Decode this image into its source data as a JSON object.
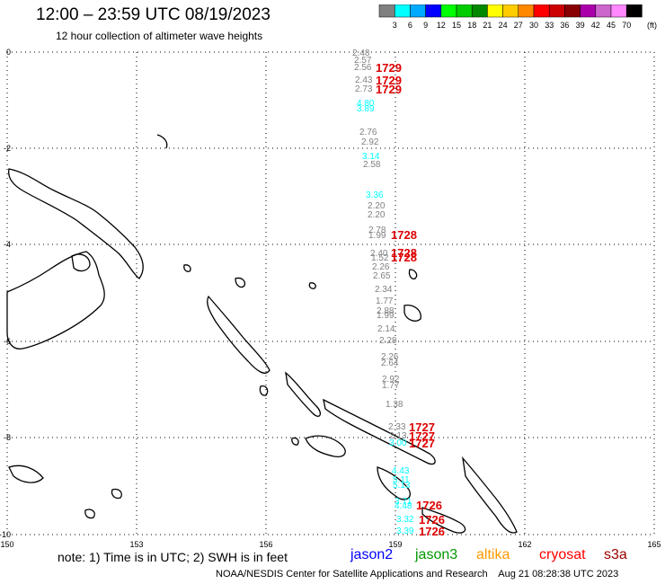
{
  "title": "12:00 – 23:59 UTC 08/19/2023",
  "subtitle": "12 hour collection of altimeter wave heights",
  "legend": {
    "unit": "(ft)",
    "colors": [
      "#808080",
      "#00ffff",
      "#00aaff",
      "#0000ff",
      "#00ff00",
      "#00cc00",
      "#008800",
      "#ffff00",
      "#ffcc00",
      "#ff8800",
      "#ff0000",
      "#cc0000",
      "#880000",
      "#aa00aa",
      "#cc66cc",
      "#ff88ff",
      "#000000"
    ],
    "labels": [
      "3",
      "6",
      "9",
      "12",
      "15",
      "18",
      "21",
      "24",
      "27",
      "30",
      "33",
      "36",
      "39",
      "42",
      "45",
      "70"
    ]
  },
  "axes": {
    "x_ticks": [
      "150",
      "153",
      "156",
      "159",
      "162",
      "165"
    ],
    "y_ticks": [
      "0",
      "-2",
      "-4",
      "-6",
      "-8",
      "-10"
    ]
  },
  "wave_labels": [
    {
      "t": "2.48",
      "c": "#808080"
    },
    {
      "t": "2.57",
      "c": "#808080"
    },
    {
      "t": "2.56",
      "c": "#808080"
    },
    {
      "t": "2.43",
      "c": "#808080"
    },
    {
      "t": "2.73",
      "c": "#808080"
    },
    {
      "t": "4.80",
      "c": "#00ffff"
    },
    {
      "t": "3.89",
      "c": "#00ffff"
    },
    {
      "t": "2.76",
      "c": "#808080"
    },
    {
      "t": "2.92",
      "c": "#808080"
    },
    {
      "t": "3.14",
      "c": "#00ffff"
    },
    {
      "t": "2.58",
      "c": "#808080"
    },
    {
      "t": "3.36",
      "c": "#00ffff"
    },
    {
      "t": "2.20",
      "c": "#808080"
    },
    {
      "t": "2.20",
      "c": "#808080"
    },
    {
      "t": "2.78",
      "c": "#808080"
    },
    {
      "t": "1.99",
      "c": "#808080"
    },
    {
      "t": "2.40",
      "c": "#808080"
    },
    {
      "t": "1.52",
      "c": "#808080"
    },
    {
      "t": "2.26",
      "c": "#808080"
    },
    {
      "t": "2.65",
      "c": "#808080"
    },
    {
      "t": "2.34",
      "c": "#808080"
    },
    {
      "t": "1.77",
      "c": "#808080"
    },
    {
      "t": "2.88",
      "c": "#808080"
    },
    {
      "t": "1.99",
      "c": "#808080"
    },
    {
      "t": "2.14",
      "c": "#808080"
    },
    {
      "t": "2.28",
      "c": "#808080"
    },
    {
      "t": "2.26",
      "c": "#808080"
    },
    {
      "t": "2.64",
      "c": "#808080"
    },
    {
      "t": "2.92",
      "c": "#808080"
    },
    {
      "t": "1.77",
      "c": "#808080"
    },
    {
      "t": "1.38",
      "c": "#808080"
    },
    {
      "t": "2.33",
      "c": "#808080"
    },
    {
      "t": "2.13",
      "c": "#808080"
    },
    {
      "t": "3.00",
      "c": "#00ffff"
    },
    {
      "t": "4.43",
      "c": "#00ffff"
    },
    {
      "t": "5.11",
      "c": "#00ffff"
    },
    {
      "t": "5.13",
      "c": "#00ffff"
    },
    {
      "t": "3.71",
      "c": "#00ffff"
    },
    {
      "t": "4.48",
      "c": "#00ffff"
    },
    {
      "t": "3.32",
      "c": "#00ffff"
    },
    {
      "t": "3.39",
      "c": "#00ffff"
    }
  ],
  "time_labels": [
    {
      "t": "1729"
    },
    {
      "t": "1729"
    },
    {
      "t": "1729"
    },
    {
      "t": "1728"
    },
    {
      "t": "1728"
    },
    {
      "t": "1728"
    },
    {
      "t": "1727"
    },
    {
      "t": "1727"
    },
    {
      "t": "1727"
    },
    {
      "t": "1726"
    },
    {
      "t": "1726"
    },
    {
      "t": "1726"
    }
  ],
  "footer": {
    "note": "note: 1) Time is in UTC; 2) SWH is in feet",
    "satellites": [
      {
        "name": "jason2",
        "color": "#0000ff"
      },
      {
        "name": "jason3",
        "color": "#009900"
      },
      {
        "name": "altika",
        "color": "#ff9900"
      },
      {
        "name": "cryosat",
        "color": "#ff0000"
      },
      {
        "name": "s3a",
        "color": "#990000"
      }
    ],
    "source": "NOAA/NESDIS Center for Satellite Applications and Research    Aug 21 08:28:38 UTC 2023"
  }
}
